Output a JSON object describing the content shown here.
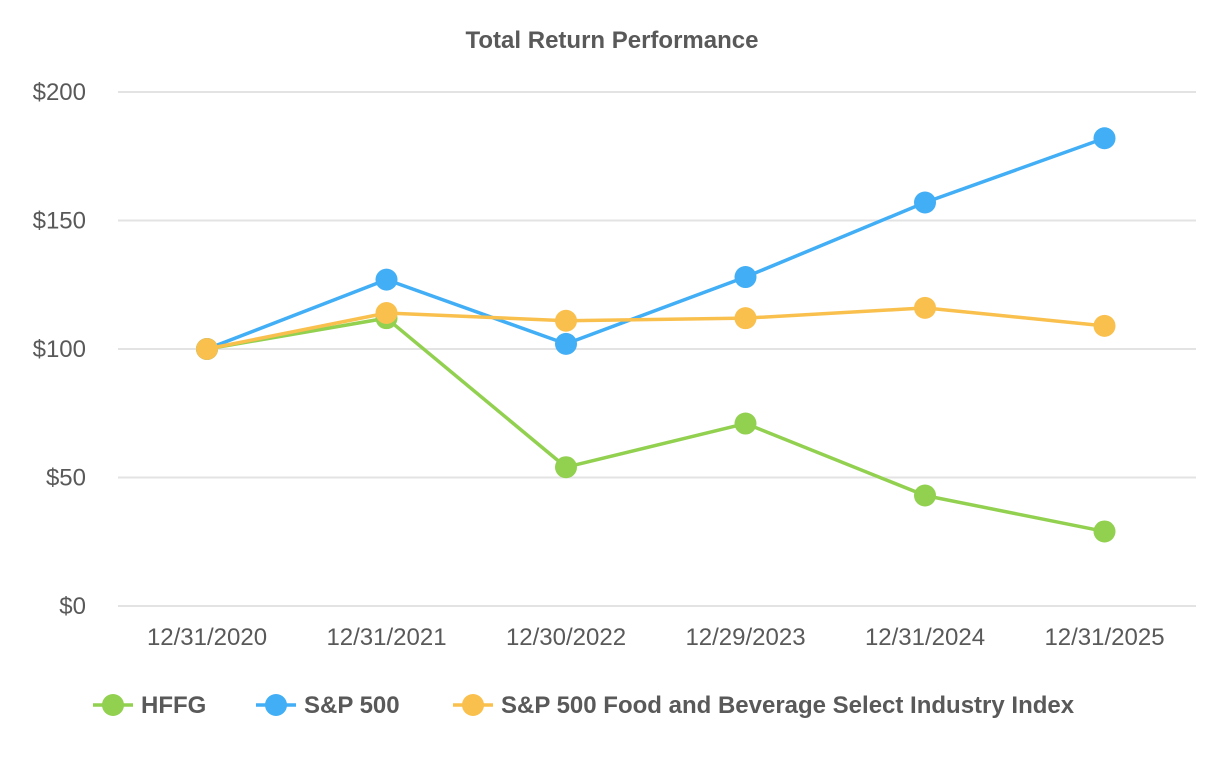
{
  "chart_data": {
    "type": "line",
    "title": "Total Return Performance",
    "xlabel": "",
    "ylabel": "",
    "categories": [
      "12/31/2020",
      "12/31/2021",
      "12/30/2022",
      "12/29/2023",
      "12/31/2024",
      "12/31/2025"
    ],
    "ylim": [
      0,
      200
    ],
    "yticks": [
      0,
      50,
      100,
      150,
      200
    ],
    "ytick_labels": [
      "$0",
      "$50",
      "$100",
      "$150",
      "$200"
    ],
    "grid": true,
    "legend_position": "bottom",
    "series": [
      {
        "name": "HFFG",
        "color": "#92d050",
        "values": [
          100,
          112,
          54,
          71,
          43,
          29
        ]
      },
      {
        "name": "S&P 500",
        "color": "#41aef5",
        "values": [
          100,
          127,
          102,
          128,
          157,
          182
        ]
      },
      {
        "name": "S&P 500 Food and Beverage Select Industry Index",
        "color": "#f9c04e",
        "values": [
          100,
          114,
          111,
          112,
          116,
          109
        ]
      }
    ]
  }
}
